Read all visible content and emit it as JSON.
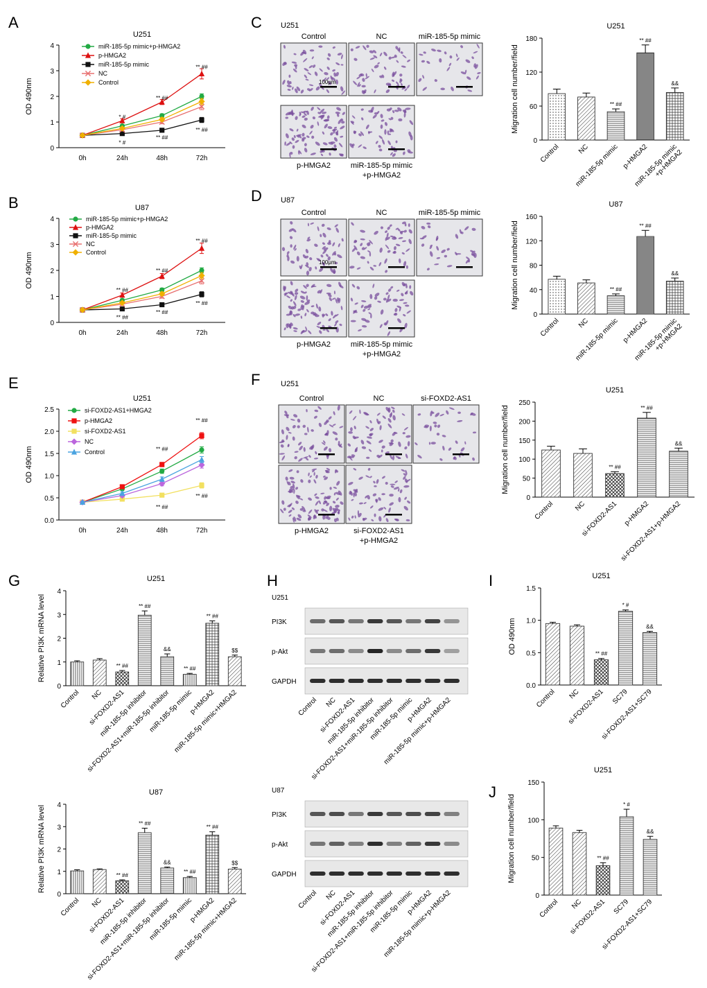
{
  "panel_labels": [
    "A",
    "B",
    "C",
    "D",
    "E",
    "F",
    "G",
    "H",
    "I",
    "J"
  ],
  "colors": {
    "axis": "#000000",
    "bar_stroke": "#333333",
    "micro_bg": "#e6e6ea",
    "cell": "#7a4f9e",
    "blot_bg": "#e8e8e8",
    "band": "#1a1a1a"
  },
  "chart_data": [
    {
      "id": "A",
      "type": "line",
      "title": "U251",
      "xlabel": "",
      "ylabel": "OD 490nm",
      "x": [
        "0h",
        "24h",
        "48h",
        "72h"
      ],
      "ylim": [
        0,
        4
      ],
      "yticks": [
        0,
        1,
        2,
        3,
        4
      ],
      "legend_position": "top-left",
      "series": [
        {
          "name": "miR-185-5p mimic+p-HMGA2",
          "color": "#22aa44",
          "marker": "circle",
          "values": [
            0.48,
            0.85,
            1.25,
            2.0
          ],
          "errors": [
            0.04,
            0.05,
            0.07,
            0.1
          ]
        },
        {
          "name": "p-HMGA2",
          "color": "#dd1111",
          "marker": "triangle",
          "values": [
            0.48,
            1.05,
            1.78,
            2.88
          ],
          "errors": [
            0.04,
            0.08,
            0.1,
            0.2
          ]
        },
        {
          "name": "miR-185-5p mimic",
          "color": "#111111",
          "marker": "square",
          "values": [
            0.48,
            0.55,
            0.68,
            1.08
          ],
          "errors": [
            0.04,
            0.05,
            0.06,
            0.1
          ]
        },
        {
          "name": "NC",
          "color": "#e87070",
          "marker": "x",
          "values": [
            0.48,
            0.7,
            1.0,
            1.6
          ],
          "errors": [
            0.04,
            0.05,
            0.07,
            0.12
          ]
        },
        {
          "name": "Control",
          "color": "#f0b000",
          "marker": "diamond",
          "values": [
            0.48,
            0.75,
            1.1,
            1.8
          ],
          "errors": [
            0.04,
            0.05,
            0.07,
            0.12
          ]
        }
      ],
      "annotations": [
        {
          "text": "* #",
          "x": "24h",
          "y": 1.2
        },
        {
          "text": "* #",
          "x": "24h",
          "y": 0.2
        },
        {
          "text": "** ##",
          "x": "48h",
          "y": 1.95
        },
        {
          "text": "** ##",
          "x": "48h",
          "y": 0.4
        },
        {
          "text": "** ##",
          "x": "72h",
          "y": 3.15
        },
        {
          "text": "** ##",
          "x": "72h",
          "y": 0.7
        }
      ]
    },
    {
      "id": "B",
      "type": "line",
      "title": "U87",
      "xlabel": "",
      "ylabel": "OD 490nm",
      "x": [
        "0h",
        "24h",
        "48h",
        "72h"
      ],
      "ylim": [
        0,
        4
      ],
      "yticks": [
        0,
        1,
        2,
        3,
        4
      ],
      "legend_position": "top-left",
      "series": [
        {
          "name": "miR-185-5p mimic+p-HMGA2",
          "color": "#22aa44",
          "marker": "circle",
          "values": [
            0.48,
            0.85,
            1.25,
            2.0
          ],
          "errors": [
            0.04,
            0.05,
            0.07,
            0.1
          ]
        },
        {
          "name": "p-HMGA2",
          "color": "#dd1111",
          "marker": "triangle",
          "values": [
            0.48,
            1.05,
            1.78,
            2.85
          ],
          "errors": [
            0.04,
            0.08,
            0.1,
            0.2
          ]
        },
        {
          "name": "miR-185-5p mimic",
          "color": "#111111",
          "marker": "square",
          "values": [
            0.48,
            0.52,
            0.68,
            1.08
          ],
          "errors": [
            0.04,
            0.05,
            0.06,
            0.1
          ]
        },
        {
          "name": "NC",
          "color": "#e87070",
          "marker": "x",
          "values": [
            0.48,
            0.7,
            1.0,
            1.6
          ],
          "errors": [
            0.04,
            0.05,
            0.07,
            0.12
          ]
        },
        {
          "name": "Control",
          "color": "#f0b000",
          "marker": "diamond",
          "values": [
            0.48,
            0.75,
            1.1,
            1.8
          ],
          "errors": [
            0.04,
            0.05,
            0.07,
            0.12
          ]
        }
      ],
      "annotations": [
        {
          "text": "** ##",
          "x": "24h",
          "y": 1.25
        },
        {
          "text": "** ##",
          "x": "24h",
          "y": 0.2
        },
        {
          "text": "** ##",
          "x": "48h",
          "y": 2.0
        },
        {
          "text": "** ##",
          "x": "48h",
          "y": 0.4
        },
        {
          "text": "** ##",
          "x": "72h",
          "y": 3.15
        },
        {
          "text": "** ##",
          "x": "72h",
          "y": 0.75
        }
      ]
    },
    {
      "id": "C",
      "type": "bar",
      "title": "U251",
      "xlabel": "",
      "ylabel": "Migration cell number/field",
      "categories": [
        "Control",
        "NC",
        "miR-185-5p mimic",
        "p-HMGA2",
        "miR-185-5p mimic\n+p-HMGA2"
      ],
      "values": [
        82,
        76,
        50,
        154,
        84
      ],
      "errors": [
        8,
        7,
        5,
        14,
        8
      ],
      "patterns": [
        "dots",
        "diag",
        "hlines",
        "hlines-dark",
        "grid"
      ],
      "annotations": [
        "",
        "",
        "** ##",
        "** ##",
        "&&"
      ],
      "ylim": [
        0,
        180
      ],
      "yticks": [
        0,
        60,
        120,
        180
      ]
    },
    {
      "id": "D",
      "type": "bar",
      "title": "U87",
      "xlabel": "",
      "ylabel": "Migration cell number/field",
      "categories": [
        "Control",
        "NC",
        "miR-185-5p mimic",
        "p-HMGA2",
        "miR-185-5p mimic\n+p-HMGA2"
      ],
      "values": [
        57,
        51,
        30,
        127,
        54
      ],
      "errors": [
        5,
        5,
        3,
        10,
        5
      ],
      "patterns": [
        "dots",
        "diag",
        "hlines",
        "hlines-dark",
        "grid"
      ],
      "annotations": [
        "",
        "",
        "** ##",
        "** ##",
        "&&"
      ],
      "ylim": [
        0,
        160
      ],
      "yticks": [
        0,
        40,
        80,
        120,
        160
      ]
    },
    {
      "id": "E",
      "type": "line",
      "title": "U251",
      "xlabel": "",
      "ylabel": "OD 490nm",
      "x": [
        "0h",
        "24h",
        "48h",
        "72h"
      ],
      "ylim": [
        0,
        2.5
      ],
      "yticks": [
        0.0,
        0.5,
        1.0,
        1.5,
        2.0,
        2.5
      ],
      "legend_position": "top-left",
      "series": [
        {
          "name": "si-FOXD2-AS1+HMGA2",
          "color": "#22aa44",
          "marker": "circle",
          "values": [
            0.4,
            0.7,
            1.1,
            1.58
          ],
          "errors": [
            0.02,
            0.03,
            0.05,
            0.07
          ]
        },
        {
          "name": "p-HMGA2",
          "color": "#ee1111",
          "marker": "square",
          "values": [
            0.4,
            0.75,
            1.25,
            1.9
          ],
          "errors": [
            0.02,
            0.03,
            0.05,
            0.07
          ]
        },
        {
          "name": "si-FOXD2-AS1",
          "color": "#f2e060",
          "marker": "square",
          "values": [
            0.4,
            0.47,
            0.56,
            0.78
          ],
          "errors": [
            0.02,
            0.03,
            0.04,
            0.06
          ]
        },
        {
          "name": "NC",
          "color": "#bb66dd",
          "marker": "diamond",
          "values": [
            0.4,
            0.55,
            0.82,
            1.24
          ],
          "errors": [
            0.02,
            0.03,
            0.05,
            0.07
          ]
        },
        {
          "name": "Control",
          "color": "#4aa3e0",
          "marker": "triangle",
          "values": [
            0.4,
            0.6,
            0.92,
            1.36
          ],
          "errors": [
            0.02,
            0.03,
            0.05,
            0.07
          ]
        }
      ],
      "annotations": [
        {
          "text": "** ##",
          "x": "48h",
          "y": 1.6
        },
        {
          "text": "** ##",
          "x": "48h",
          "y": 0.3
        },
        {
          "text": "** ##",
          "x": "72h",
          "y": 2.25
        },
        {
          "text": "** ##",
          "x": "72h",
          "y": 0.55
        }
      ]
    },
    {
      "id": "F",
      "type": "bar",
      "title": "U251",
      "xlabel": "",
      "ylabel": "Migration cell number/field",
      "categories": [
        "Control",
        "NC",
        "si-FOXD2-AS1",
        "p-HMGA2",
        "si-FOXD2-AS1+p-HMGA2"
      ],
      "values": [
        124,
        115,
        62,
        208,
        121
      ],
      "errors": [
        10,
        12,
        5,
        15,
        8
      ],
      "patterns": [
        "diag",
        "diag",
        "cross",
        "hlines",
        "hlines"
      ],
      "annotations": [
        "",
        "",
        "** ##",
        "** ##",
        "&&"
      ],
      "ylim": [
        0,
        250
      ],
      "yticks": [
        0,
        50,
        100,
        150,
        200,
        250
      ]
    },
    {
      "id": "G1",
      "type": "bar",
      "title": "U251",
      "xlabel": "",
      "ylabel": "Relative PI3K mRNA level",
      "categories": [
        "Control",
        "NC",
        "si-FOXD2-AS1",
        "miR-185-5p inhibitor",
        "si-FOXD2-AS1+miR-185-5p inhibitor",
        "miR-185-5p mimic",
        "p-HMGA2",
        "miR-185-5p mimic+HMGA2"
      ],
      "values": [
        1.0,
        1.08,
        0.58,
        2.97,
        1.22,
        0.48,
        2.63,
        1.22
      ],
      "errors": [
        0.05,
        0.06,
        0.06,
        0.18,
        0.12,
        0.04,
        0.1,
        0.07
      ],
      "patterns": [
        "vlines",
        "diag",
        "cross",
        "hlines",
        "hlines",
        "vlines",
        "grid",
        "diag"
      ],
      "annotations": [
        "",
        "",
        "** ##",
        "** ##",
        "&&",
        "** ##",
        "** ##",
        "$$"
      ],
      "ylim": [
        0,
        4
      ],
      "yticks": [
        0,
        1,
        2,
        3,
        4
      ]
    },
    {
      "id": "G2",
      "type": "bar",
      "title": "U87",
      "xlabel": "",
      "ylabel": "Relative PI3K mRNA level",
      "categories": [
        "Control",
        "NC",
        "si-FOXD2-AS1",
        "miR-185-5p inhibitor",
        "si-FOXD2-AS1+miR-185-5p inhibitor",
        "miR-185-5p mimic",
        "p-HMGA2",
        "miR-185-5p mimic+HMGA2"
      ],
      "values": [
        1.02,
        1.08,
        0.58,
        2.73,
        1.15,
        0.72,
        2.62,
        1.1
      ],
      "errors": [
        0.05,
        0.03,
        0.04,
        0.2,
        0.04,
        0.05,
        0.15,
        0.07
      ],
      "patterns": [
        "vlines",
        "diag",
        "cross",
        "hlines",
        "hlines",
        "vlines",
        "grid",
        "diag"
      ],
      "annotations": [
        "",
        "",
        "** ##",
        "** ##",
        "&&",
        "** ##",
        "** ##",
        "$$"
      ],
      "ylim": [
        0,
        4
      ],
      "yticks": [
        0,
        1,
        2,
        3,
        4
      ]
    },
    {
      "id": "I",
      "type": "bar",
      "title": "U251",
      "xlabel": "",
      "ylabel": "OD 490nm",
      "categories": [
        "Control",
        "NC",
        "si-FOXD2-AS1",
        "SC79",
        "si-FOXD2-AS1+SC79"
      ],
      "values": [
        0.95,
        0.91,
        0.39,
        1.14,
        0.81
      ],
      "errors": [
        0.02,
        0.02,
        0.02,
        0.02,
        0.02
      ],
      "patterns": [
        "diag",
        "diag",
        "cross",
        "hlines",
        "hlines"
      ],
      "annotations": [
        "",
        "",
        "** ##",
        "* #",
        "&&"
      ],
      "ylim": [
        0,
        1.5
      ],
      "yticks": [
        0.0,
        0.5,
        1.0,
        1.5
      ]
    },
    {
      "id": "J",
      "type": "bar",
      "title": "U251",
      "xlabel": "",
      "ylabel": "Migration cell number/field",
      "categories": [
        "Control",
        "NC",
        "si-FOXD2-AS1",
        "SC79",
        "si-FOXD2-AS1+SC79"
      ],
      "values": [
        89,
        83,
        39,
        104,
        74
      ],
      "errors": [
        3,
        3,
        4,
        10,
        4
      ],
      "patterns": [
        "diag",
        "diag",
        "cross",
        "hlines",
        "hlines"
      ],
      "annotations": [
        "",
        "",
        "** ##",
        "* #",
        "&&"
      ],
      "ylim": [
        0,
        150
      ],
      "yticks": [
        0,
        50,
        100,
        150
      ]
    }
  ],
  "micrographs": [
    {
      "id": "C",
      "title": "U251",
      "labels": [
        "Control",
        "NC",
        "miR-185-5p mimic"
      ],
      "bottom_labels": [
        "p-HMGA2",
        "miR-185-5p mimic",
        "+p-HMGA2"
      ],
      "scale": "100μm"
    },
    {
      "id": "D",
      "title": "U87",
      "labels": [
        "Control",
        "NC",
        "miR-185-5p mimic"
      ],
      "bottom_labels": [
        "p-HMGA2",
        "miR-185-5p mimic",
        "+p-HMGA2"
      ],
      "scale": "100μm"
    },
    {
      "id": "F",
      "title": "U251",
      "labels": [
        "Control",
        "NC",
        "si-FOXD2-AS1"
      ],
      "bottom_labels": [
        "p-HMGA2",
        "si-FOXD2-AS1",
        "+p-HMGA2"
      ]
    }
  ],
  "blots": [
    {
      "id": "H1",
      "title": "U251",
      "rows": [
        "PI3K",
        "p-Akt",
        "GAPDH"
      ],
      "intensity": [
        [
          0.6,
          0.7,
          0.55,
          0.85,
          0.7,
          0.55,
          0.8,
          0.4
        ],
        [
          0.55,
          0.6,
          0.45,
          0.95,
          0.45,
          0.6,
          0.85,
          0.35
        ],
        [
          0.9,
          0.9,
          0.9,
          0.9,
          0.9,
          0.9,
          0.9,
          0.9
        ]
      ]
    },
    {
      "id": "H2",
      "title": "U87",
      "rows": [
        "PI3K",
        "p-Akt",
        "GAPDH"
      ],
      "intensity": [
        [
          0.7,
          0.75,
          0.55,
          0.85,
          0.7,
          0.75,
          0.8,
          0.5
        ],
        [
          0.55,
          0.65,
          0.5,
          0.9,
          0.5,
          0.65,
          0.85,
          0.45
        ],
        [
          0.9,
          0.9,
          0.9,
          0.9,
          0.9,
          0.9,
          0.9,
          0.9
        ]
      ]
    }
  ],
  "blot_lanes": [
    "Control",
    "NC",
    "si-FOXD2-AS1",
    "miR-185-5p inhibitor",
    "si-FOXD2-AS1+miR-185-5p inhibitor",
    "miR-185-5p mimic",
    "p-HMGA2",
    "miR-185-5p mimic+p-HMGA2"
  ]
}
